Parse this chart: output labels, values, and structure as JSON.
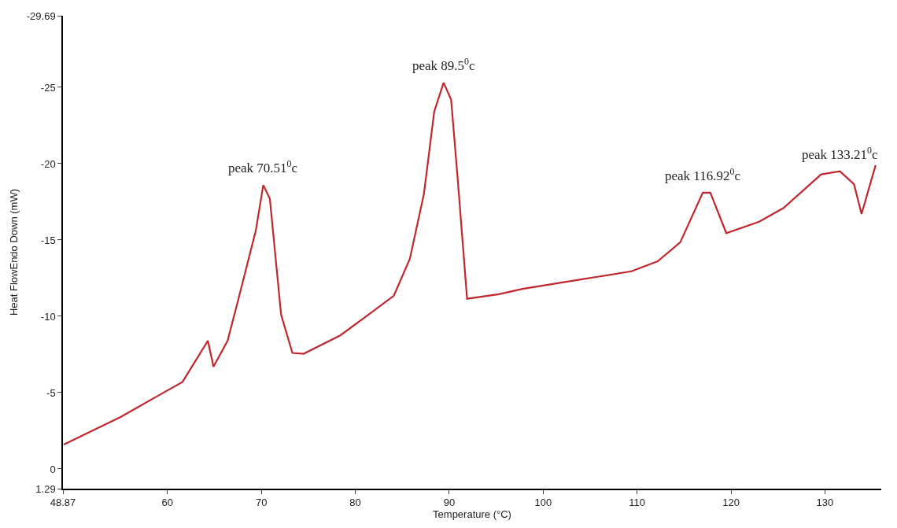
{
  "chart_data": {
    "type": "line",
    "xlabel": "Temperature (°C)",
    "ylabel": "Heat FlowEndo Down (mW)",
    "x": [
      48.95,
      55,
      59,
      61.6,
      64.3,
      64.9,
      66.4,
      67.5,
      69.4,
      70.2,
      70.9,
      72.1,
      73.3,
      74.5,
      78.4,
      81.6,
      84.1,
      85.8,
      87.3,
      88.4,
      89.4,
      90.2,
      90.9,
      91.9,
      95.3,
      97.8,
      104.4,
      109.4,
      112.2,
      114.6,
      117.0,
      117.8,
      119.5,
      123.0,
      125.6,
      129.6,
      131.6,
      133.1,
      133.9,
      135.4
    ],
    "series": [
      {
        "color": "#c0282d",
        "values": [
          -1.6,
          -3.4,
          -4.8,
          -5.7,
          -8.4,
          -6.7,
          -8.4,
          -11.0,
          -15.6,
          -18.6,
          -17.7,
          -10.1,
          -7.6,
          -7.55,
          -8.75,
          -10.2,
          -11.35,
          -13.75,
          -18.0,
          -23.4,
          -25.3,
          -24.2,
          -19.0,
          -11.15,
          -11.45,
          -11.8,
          -12.45,
          -12.95,
          -13.6,
          -14.85,
          -18.1,
          -18.1,
          -15.45,
          -16.2,
          -17.1,
          -19.3,
          -19.5,
          -18.65,
          -16.7,
          -19.9
        ]
      }
    ],
    "annotations": [
      {
        "text": "peak 70.51$^{0}$c",
        "x": 70.2,
        "y": -18.6
      },
      {
        "text": "peak 89.5$^{0}$c",
        "x": 89.4,
        "y": -25.3
      },
      {
        "text": "peak 116.92$^{0}$c",
        "x": 117.0,
        "y": -18.1
      },
      {
        "text": "peak 133.21$^{0}$c",
        "x": 131.6,
        "y": -19.5
      }
    ],
    "xlim": [
      48.87,
      136
    ],
    "xticks": [
      48.87,
      60,
      70,
      80,
      90,
      100,
      110,
      120,
      130
    ],
    "ylim": [
      1.29,
      -29.69
    ],
    "yticks": [
      -29.69,
      -25,
      -20,
      -15,
      -10,
      -5,
      0,
      1.29
    ],
    "marker": "none",
    "line_style": "solid"
  }
}
